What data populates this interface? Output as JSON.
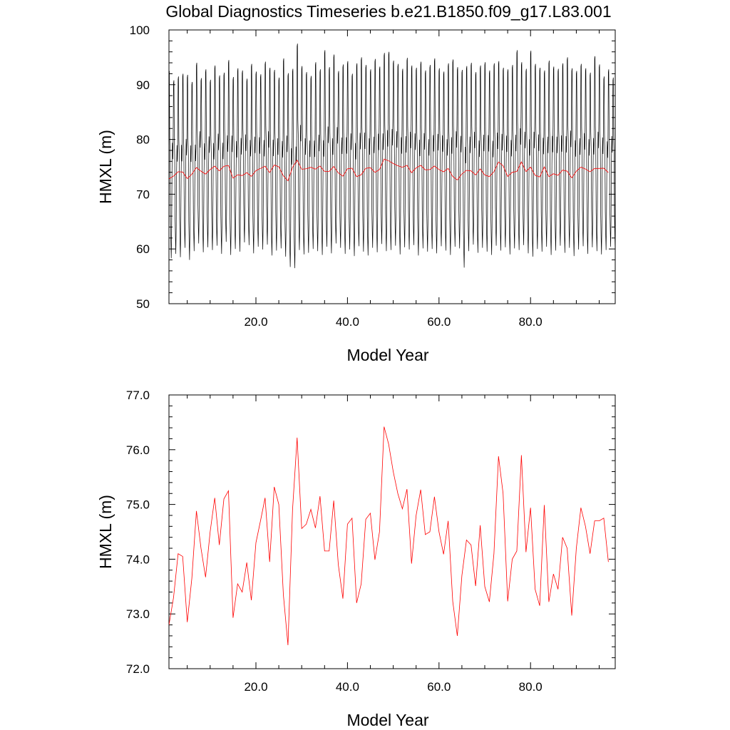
{
  "page_title": "Global Diagnostics Timeseries b.e21.B1850.f09_g17.L83.001",
  "colors": {
    "monthly": "#000000",
    "annual": "#ff0000",
    "axes": "#000000"
  },
  "chart_data": [
    {
      "type": "line",
      "title": "Global Diagnostics Timeseries b.e21.B1850.f09_g17.L83.001",
      "xlabel": "Model Year",
      "ylabel": "HMXL (m)",
      "xlim": [
        1,
        98.5
      ],
      "ylim": [
        50,
        100
      ],
      "xticks": [
        20,
        40,
        60,
        80
      ],
      "xtick_labels": [
        "20.0",
        "40.0",
        "60.0",
        "80.0"
      ],
      "yticks": [
        50,
        60,
        70,
        80,
        90,
        100
      ],
      "ytick_labels": [
        "50",
        "60",
        "70",
        "80",
        "90",
        "100"
      ],
      "grid": false,
      "legend": "none",
      "series": [
        {
          "style": "monthly",
          "color": "#000000",
          "description_of_values": "monthly mean values, one per month, years 1-98",
          "annual_peaks": [
            92.5,
            90.8,
            91.5,
            92.0,
            91.8,
            90.5,
            94.0,
            91.2,
            92.8,
            90.9,
            93.5,
            91.7,
            92.2,
            94.5,
            91.4,
            93.0,
            92.6,
            91.1,
            93.8,
            92.4,
            91.9,
            94.2,
            93.1,
            92.7,
            91.3,
            94.8,
            92.1,
            92.9,
            97.5,
            93.4,
            92.3,
            91.6,
            94.1,
            92.8,
            96.3,
            93.2,
            95.5,
            92.5,
            93.7,
            94.3,
            92.0,
            93.9,
            95.0,
            93.6,
            92.8,
            94.7,
            93.3,
            95.8,
            96.0,
            94.4,
            93.8,
            92.9,
            94.9,
            93.5,
            93.1,
            94.2,
            92.6,
            93.6,
            94.8,
            93.0,
            92.4,
            93.9,
            94.6,
            93.2,
            92.7,
            93.4,
            94.0,
            92.3,
            93.5,
            94.1,
            92.6,
            93.9,
            94.3,
            93.1,
            92.8,
            93.6,
            96.3,
            94.1,
            92.9,
            96.2,
            93.8,
            93.1,
            92.6,
            94.4,
            93.3,
            92.9,
            93.9,
            95.0,
            93.0,
            92.5,
            93.8,
            93.0,
            92.2,
            95.2,
            93.7,
            91.5,
            92.8,
            91.3
          ],
          "annual_troughs": [
            58.3,
            59.1,
            58.5,
            60.2,
            58.0,
            59.6,
            61.0,
            59.4,
            60.3,
            59.8,
            60.6,
            59.1,
            61.3,
            58.9,
            60.0,
            59.5,
            61.2,
            60.7,
            59.2,
            60.4,
            59.9,
            60.8,
            58.8,
            59.7,
            60.1,
            58.6,
            56.7,
            56.5,
            59.8,
            59.0,
            59.3,
            60.0,
            59.6,
            58.9,
            60.4,
            59.2,
            61.0,
            60.2,
            59.1,
            59.9,
            58.7,
            60.5,
            59.5,
            58.8,
            60.2,
            59.4,
            60.9,
            59.6,
            59.8,
            60.6,
            59.0,
            60.3,
            59.9,
            60.7,
            58.8,
            60.1,
            59.5,
            60.0,
            59.2,
            60.5,
            59.7,
            58.9,
            60.4,
            60.1,
            56.6,
            59.6,
            60.8,
            59.3,
            60.2,
            59.5,
            58.9,
            60.6,
            59.7,
            60.3,
            59.0,
            60.1,
            59.8,
            60.7,
            59.2,
            58.6,
            60.0,
            59.5,
            60.4,
            58.9,
            59.7,
            60.6,
            59.3,
            60.2,
            58.7,
            59.9,
            60.5,
            59.1,
            60.3,
            59.6,
            59.0,
            59.8,
            60.4,
            59.5
          ]
        },
        {
          "style": "annual",
          "color": "#ff0000",
          "x_start": 1,
          "values": [
            72.8,
            73.3,
            74.1,
            74.05,
            72.85,
            73.65,
            74.88,
            74.2,
            73.67,
            74.5,
            75.12,
            74.26,
            75.1,
            75.25,
            72.93,
            73.55,
            73.4,
            73.94,
            73.25,
            74.3,
            74.7,
            75.12,
            73.95,
            75.32,
            75.0,
            73.35,
            72.43,
            74.9,
            76.22,
            74.56,
            74.64,
            74.91,
            74.57,
            75.15,
            74.15,
            74.15,
            75.07,
            73.9,
            73.28,
            74.64,
            74.75,
            73.2,
            73.55,
            74.73,
            74.84,
            73.99,
            74.5,
            76.42,
            76.1,
            75.6,
            75.2,
            74.92,
            75.28,
            73.92,
            74.8,
            75.27,
            74.45,
            74.5,
            75.14,
            74.5,
            74.09,
            74.7,
            73.23,
            72.6,
            73.7,
            74.35,
            74.26,
            73.51,
            74.62,
            73.5,
            73.22,
            74.1,
            75.88,
            75.2,
            73.23,
            74.0,
            74.15,
            75.9,
            74.13,
            74.94,
            73.45,
            73.15,
            74.99,
            73.22,
            73.73,
            73.45,
            74.4,
            74.2,
            72.97,
            74.2,
            74.94,
            74.6,
            74.1,
            74.7,
            74.7,
            74.75,
            73.95
          ]
        }
      ]
    },
    {
      "type": "line",
      "title": "",
      "xlabel": "Model Year",
      "ylabel": "HMXL (m)",
      "xlim": [
        1,
        98.5
      ],
      "ylim": [
        72.0,
        77.0
      ],
      "xticks": [
        20,
        40,
        60,
        80
      ],
      "xtick_labels": [
        "20.0",
        "40.0",
        "60.0",
        "80.0"
      ],
      "yticks": [
        72,
        73,
        74,
        75,
        76,
        77
      ],
      "ytick_labels": [
        "72.0",
        "73.0",
        "74.0",
        "75.0",
        "76.0",
        "77.0"
      ],
      "grid": false,
      "legend": "none",
      "series": [
        {
          "style": "annual",
          "color": "#ff0000",
          "x_start": 1,
          "values": [
            72.8,
            73.3,
            74.1,
            74.05,
            72.85,
            73.65,
            74.88,
            74.2,
            73.67,
            74.5,
            75.12,
            74.26,
            75.1,
            75.25,
            72.93,
            73.55,
            73.4,
            73.94,
            73.25,
            74.3,
            74.7,
            75.12,
            73.95,
            75.32,
            75.0,
            73.35,
            72.43,
            74.9,
            76.22,
            74.56,
            74.64,
            74.91,
            74.57,
            75.15,
            74.15,
            74.15,
            75.07,
            73.9,
            73.28,
            74.64,
            74.75,
            73.2,
            73.55,
            74.73,
            74.84,
            73.99,
            74.5,
            76.42,
            76.1,
            75.6,
            75.2,
            74.92,
            75.28,
            73.92,
            74.8,
            75.27,
            74.45,
            74.5,
            75.14,
            74.5,
            74.09,
            74.7,
            73.23,
            72.6,
            73.7,
            74.35,
            74.26,
            73.51,
            74.62,
            73.5,
            73.22,
            74.1,
            75.88,
            75.2,
            73.23,
            74.0,
            74.15,
            75.9,
            74.13,
            74.94,
            73.45,
            73.15,
            74.99,
            73.22,
            73.73,
            73.45,
            74.4,
            74.2,
            72.97,
            74.2,
            74.94,
            74.6,
            74.1,
            74.7,
            74.7,
            74.75,
            73.95
          ]
        }
      ]
    }
  ]
}
